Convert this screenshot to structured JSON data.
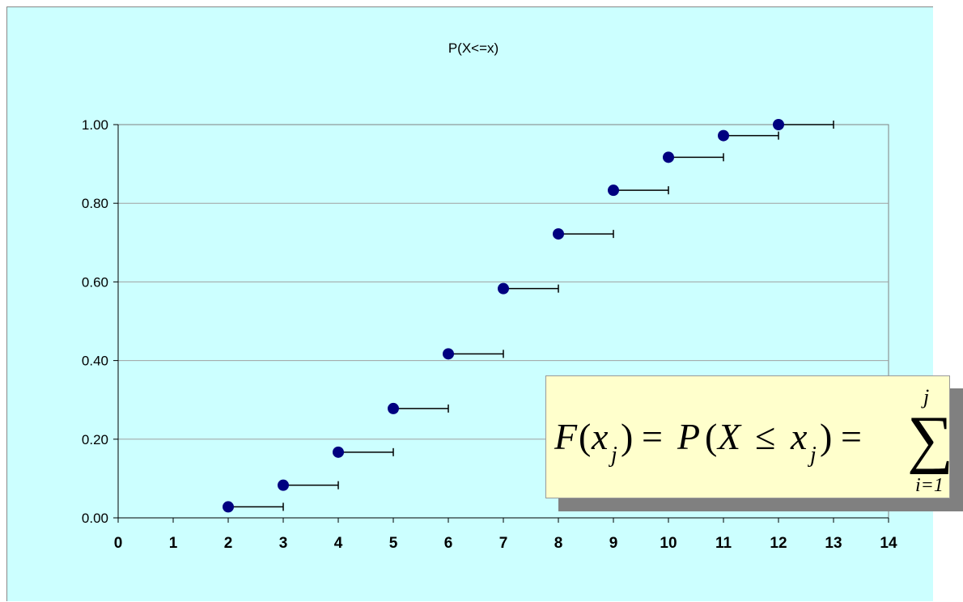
{
  "chart_data": {
    "type": "scatter",
    "title": "P(X<=x)",
    "xlabel": "",
    "ylabel": "",
    "xlim": [
      0,
      14
    ],
    "ylim": [
      0,
      1
    ],
    "x_ticks": [
      "0",
      "1",
      "2",
      "3",
      "4",
      "5",
      "6",
      "7",
      "8",
      "9",
      "10",
      "11",
      "12",
      "13",
      "14"
    ],
    "y_ticks": [
      "0.00",
      "0.20",
      "0.40",
      "0.60",
      "0.80",
      "1.00"
    ],
    "grid": "horizontal",
    "points": [
      {
        "x": 2,
        "y": 0.028,
        "x_end": 3
      },
      {
        "x": 3,
        "y": 0.083,
        "x_end": 4
      },
      {
        "x": 4,
        "y": 0.167,
        "x_end": 5
      },
      {
        "x": 5,
        "y": 0.278,
        "x_end": 6
      },
      {
        "x": 6,
        "y": 0.417,
        "x_end": 7
      },
      {
        "x": 7,
        "y": 0.583,
        "x_end": 8
      },
      {
        "x": 8,
        "y": 0.722,
        "x_end": 9
      },
      {
        "x": 9,
        "y": 0.833,
        "x_end": 10
      },
      {
        "x": 10,
        "y": 0.917,
        "x_end": 11
      },
      {
        "x": 11,
        "y": 0.972,
        "x_end": 12
      },
      {
        "x": 12,
        "y": 1.0,
        "x_end": 13
      }
    ],
    "colors": {
      "background": "#ccffff",
      "point": "#000080",
      "grid": "#a0a0a0",
      "box": "#ffffcc"
    },
    "annotation": {
      "F": "F",
      "x": "x",
      "j": "j",
      "eq": "=",
      "P": "P",
      "X": "X",
      "le": "≤",
      "sigma": "∑",
      "upper": "j",
      "lower": "i=1"
    }
  }
}
